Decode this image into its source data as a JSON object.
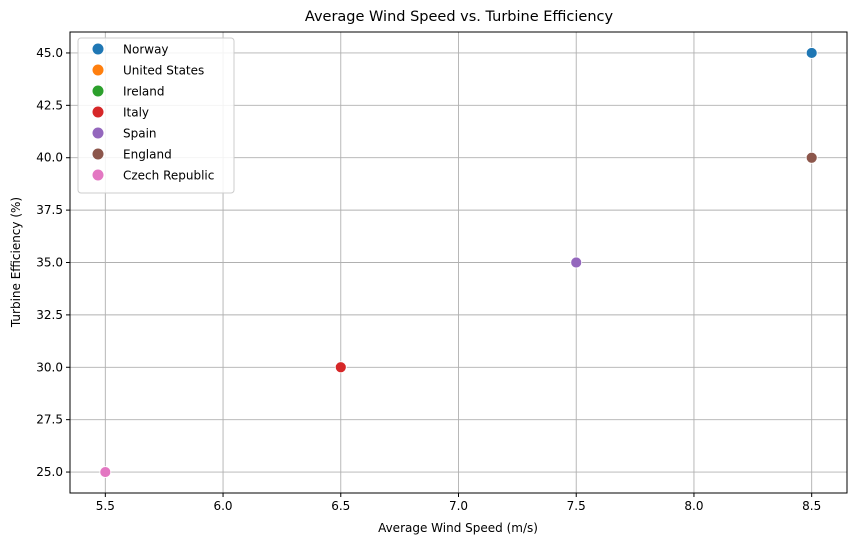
{
  "chart_data": {
    "type": "scatter",
    "title": "Average Wind Speed vs. Turbine Efficiency",
    "xlabel": "Average Wind Speed (m/s)",
    "ylabel": "Turbine Efficiency (%)",
    "xlim": [
      5.35,
      8.65
    ],
    "ylim": [
      24.0,
      46.0
    ],
    "xticks": [
      "5.5",
      "6.0",
      "6.5",
      "7.0",
      "7.5",
      "8.0",
      "8.5"
    ],
    "yticks": [
      "25.0",
      "27.5",
      "30.0",
      "32.5",
      "35.0",
      "37.5",
      "40.0",
      "42.5",
      "45.0"
    ],
    "grid": true,
    "legend_position": "top-left",
    "series": [
      {
        "name": "Norway",
        "color": "#1f77b4",
        "x": [
          8.5
        ],
        "y": [
          45.0
        ]
      },
      {
        "name": "United States",
        "color": "#ff7f0e",
        "x": [
          8.5
        ],
        "y": [
          40.0
        ]
      },
      {
        "name": "Ireland",
        "color": "#2ca02c",
        "x": [
          6.5
        ],
        "y": [
          30.0
        ]
      },
      {
        "name": "Italy",
        "color": "#d62728",
        "x": [
          6.5
        ],
        "y": [
          30.0
        ]
      },
      {
        "name": "Spain",
        "color": "#9467bd",
        "x": [
          7.5
        ],
        "y": [
          35.0
        ]
      },
      {
        "name": "England",
        "color": "#8c564b",
        "x": [
          8.5
        ],
        "y": [
          40.0
        ]
      },
      {
        "name": "Czech Republic",
        "color": "#e377c2",
        "x": [
          5.5
        ],
        "y": [
          25.0
        ]
      }
    ]
  }
}
